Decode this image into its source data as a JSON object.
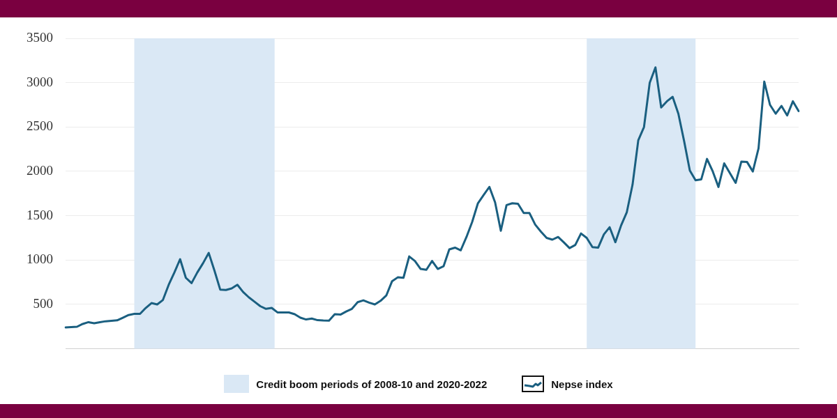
{
  "chart_data": {
    "type": "line",
    "categories": [
      null,
      null,
      null,
      null,
      null,
      null,
      null,
      null,
      null,
      null,
      null,
      null,
      null,
      null,
      null,
      null,
      null,
      null,
      null,
      null,
      null,
      null,
      null,
      null,
      null,
      null,
      null,
      null,
      null,
      null,
      null,
      null,
      null,
      null,
      null,
      null,
      null,
      null,
      null,
      null,
      null,
      null,
      null,
      null,
      null,
      null,
      null,
      null,
      null,
      null,
      null,
      null,
      null,
      null,
      null,
      null,
      null,
      null,
      null,
      null,
      null,
      null,
      null,
      null,
      null,
      null,
      null,
      null,
      null,
      null,
      null,
      null,
      null,
      null,
      null,
      null,
      null,
      null,
      null,
      null,
      null,
      null,
      null,
      null,
      null,
      null,
      null,
      null,
      null,
      null,
      null,
      null,
      null,
      null,
      null,
      null,
      null,
      null,
      null,
      null,
      null,
      null,
      null,
      null,
      null,
      null,
      null,
      null,
      null,
      null,
      null,
      null,
      null,
      null,
      null,
      null,
      null,
      null,
      null,
      null,
      null,
      null,
      null,
      null,
      null,
      null,
      null,
      null,
      null
    ],
    "series": [
      {
        "name": "Nepse index",
        "color": "#1a5f80",
        "values": [
          241,
          245,
          248,
          280,
          300,
          287,
          300,
          310,
          315,
          320,
          350,
          380,
          394,
          394,
          460,
          515,
          500,
          550,
          720,
          860,
          1010,
          800,
          740,
          860,
          964,
          1080,
          880,
          667,
          662,
          680,
          721,
          640,
          580,
          530,
          480,
          450,
          460,
          410,
          409,
          409,
          390,
          350,
          330,
          340,
          322,
          318,
          317,
          390,
          385,
          420,
          450,
          525,
          546,
          520,
          500,
          540,
          600,
          760,
          805,
          800,
          1041,
          990,
          900,
          890,
          990,
          900,
          930,
          1120,
          1140,
          1110,
          1260,
          1430,
          1640,
          1733,
          1825,
          1650,
          1330,
          1620,
          1640,
          1634,
          1530,
          1530,
          1400,
          1320,
          1250,
          1230,
          1260,
          1200,
          1135,
          1170,
          1300,
          1250,
          1145,
          1140,
          1290,
          1370,
          1201,
          1390,
          1540,
          1850,
          2350,
          2500,
          3000,
          3172,
          2720,
          2790,
          2840,
          2650,
          2342,
          2010,
          1900,
          1910,
          2140,
          2000,
          1824,
          2090,
          1980,
          1870,
          2110,
          2105,
          1999,
          2260,
          3012,
          2750,
          2650,
          2738,
          2630,
          2790,
          2680
        ]
      }
    ],
    "ylim": [
      0,
      3500
    ],
    "yticks": [
      500,
      1000,
      1500,
      2000,
      2500,
      3000,
      3500
    ],
    "grid": "y",
    "legend": "bottom",
    "tick_labels": "y",
    "annotations": [
      "Credit boom periods of 2008-10 and 2020-2022"
    ]
  }
}
